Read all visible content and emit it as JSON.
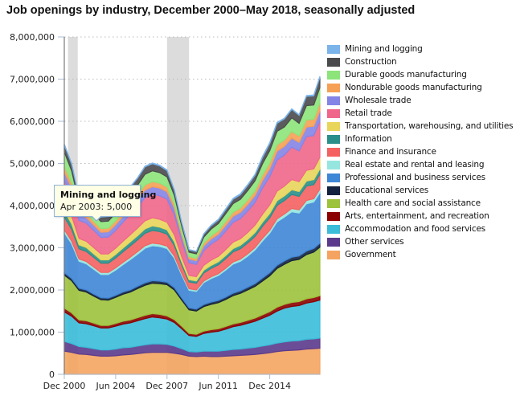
{
  "chart_data": {
    "type": "area",
    "stacked": true,
    "title": "Job openings by industry, December 2000–May 2018, seasonally adjusted",
    "xlabel": "",
    "ylabel": "",
    "ylim": [
      0,
      8000000
    ],
    "yticks": [
      0,
      1000000,
      2000000,
      3000000,
      4000000,
      5000000,
      6000000,
      7000000,
      8000000
    ],
    "ytick_labels": [
      "0",
      "1,000,000",
      "2,000,000",
      "3,000,000",
      "4,000,000",
      "5,000,000",
      "6,000,000",
      "7,000,000",
      "8,000,000"
    ],
    "xlim_months_since_dec2000": [
      0,
      209
    ],
    "xticks_months_since_dec2000": [
      0,
      42,
      84,
      126,
      168
    ],
    "xtick_labels": [
      "Dec 2000",
      "Jun 2004",
      "Dec 2007",
      "Jun 2011",
      "Dec 2014"
    ],
    "grid": "horizontal-dotted",
    "legend_position": "right",
    "recession_bands_months_since_dec2000": [
      [
        3,
        11
      ],
      [
        84,
        102
      ]
    ],
    "x": [
      "Dec 2000",
      "Jun 2001",
      "Dec 2001",
      "Jun 2002",
      "Dec 2002",
      "Jun 2003",
      "Dec 2003",
      "Jun 2004",
      "Dec 2004",
      "Jun 2005",
      "Dec 2005",
      "Jun 2006",
      "Dec 2006",
      "Jun 2007",
      "Dec 2007",
      "Jun 2008",
      "Dec 2008",
      "Jun 2009",
      "Dec 2009",
      "Jun 2010",
      "Dec 2010",
      "Jun 2011",
      "Dec 2011",
      "Jun 2012",
      "Dec 2012",
      "Jun 2013",
      "Dec 2013",
      "Jun 2014",
      "Dec 2014",
      "Jun 2015",
      "Dec 2015",
      "Jun 2016",
      "Dec 2016",
      "Jun 2017",
      "Dec 2017",
      "May 2018"
    ],
    "x_months_since_dec2000": [
      0,
      6,
      12,
      18,
      24,
      30,
      36,
      42,
      48,
      54,
      60,
      66,
      72,
      78,
      84,
      90,
      96,
      102,
      108,
      114,
      120,
      126,
      132,
      138,
      144,
      150,
      156,
      162,
      168,
      174,
      180,
      186,
      192,
      198,
      204,
      209
    ],
    "series": [
      {
        "name": "Government",
        "color": "#f4a460",
        "values": [
          550000,
          520000,
          480000,
          470000,
          450000,
          430000,
          430000,
          440000,
          460000,
          470000,
          490000,
          510000,
          520000,
          520000,
          520000,
          500000,
          470000,
          430000,
          420000,
          430000,
          420000,
          420000,
          430000,
          440000,
          450000,
          460000,
          470000,
          490000,
          510000,
          540000,
          560000,
          570000,
          580000,
          600000,
          610000,
          620000
        ]
      },
      {
        "name": "Other services",
        "color": "#5b3a8c",
        "values": [
          230000,
          210000,
          180000,
          170000,
          160000,
          150000,
          150000,
          160000,
          170000,
          170000,
          180000,
          190000,
          200000,
          200000,
          190000,
          170000,
          140000,
          110000,
          110000,
          120000,
          130000,
          130000,
          140000,
          150000,
          150000,
          160000,
          170000,
          180000,
          190000,
          200000,
          210000,
          220000,
          220000,
          230000,
          230000,
          240000
        ]
      },
      {
        "name": "Accommodation and food services",
        "color": "#3bbcd9",
        "values": [
          700000,
          650000,
          560000,
          560000,
          540000,
          520000,
          520000,
          540000,
          560000,
          580000,
          600000,
          620000,
          640000,
          620000,
          600000,
          560000,
          470000,
          380000,
          370000,
          420000,
          450000,
          470000,
          500000,
          540000,
          560000,
          590000,
          620000,
          660000,
          700000,
          760000,
          800000,
          820000,
          830000,
          860000,
          880000,
          900000
        ]
      },
      {
        "name": "Arts, entertainment, and recreation",
        "color": "#8b0000",
        "values": [
          90000,
          80000,
          70000,
          70000,
          65000,
          60000,
          60000,
          65000,
          70000,
          70000,
          75000,
          80000,
          80000,
          80000,
          75000,
          70000,
          60000,
          50000,
          50000,
          55000,
          60000,
          60000,
          65000,
          65000,
          70000,
          70000,
          75000,
          80000,
          85000,
          90000,
          90000,
          95000,
          95000,
          100000,
          100000,
          105000
        ]
      },
      {
        "name": "Health care and social assistance",
        "color": "#9dc23b",
        "values": [
          780000,
          760000,
          700000,
          680000,
          640000,
          610000,
          600000,
          620000,
          640000,
          660000,
          690000,
          710000,
          720000,
          730000,
          740000,
          700000,
          620000,
          560000,
          550000,
          580000,
          600000,
          620000,
          640000,
          670000,
          690000,
          720000,
          750000,
          800000,
          850000,
          920000,
          950000,
          990000,
          1000000,
          1050000,
          1080000,
          1150000
        ]
      },
      {
        "name": "Educational services",
        "color": "#13223e",
        "values": [
          60000,
          55000,
          50000,
          50000,
          48000,
          45000,
          45000,
          48000,
          50000,
          52000,
          55000,
          58000,
          60000,
          60000,
          58000,
          55000,
          50000,
          45000,
          45000,
          48000,
          50000,
          52000,
          55000,
          58000,
          60000,
          62000,
          65000,
          70000,
          72000,
          75000,
          78000,
          80000,
          80000,
          82000,
          85000,
          90000
        ]
      },
      {
        "name": "Professional and business services",
        "color": "#3e86d6",
        "values": [
          950000,
          820000,
          640000,
          620000,
          590000,
          550000,
          560000,
          600000,
          650000,
          720000,
          760000,
          820000,
          830000,
          820000,
          800000,
          700000,
          540000,
          420000,
          420000,
          520000,
          560000,
          590000,
          640000,
          690000,
          700000,
          740000,
          800000,
          880000,
          940000,
          1030000,
          1040000,
          1080000,
          1020000,
          1120000,
          1100000,
          1200000
        ]
      },
      {
        "name": "Real estate and rental and leasing",
        "color": "#96e6e0",
        "values": [
          70000,
          65000,
          55000,
          55000,
          52000,
          50000,
          50000,
          52000,
          55000,
          58000,
          60000,
          62000,
          62000,
          60000,
          58000,
          52000,
          42000,
          35000,
          35000,
          40000,
          42000,
          44000,
          46000,
          50000,
          52000,
          55000,
          58000,
          62000,
          66000,
          72000,
          74000,
          78000,
          76000,
          80000,
          80000,
          85000
        ]
      },
      {
        "name": "Finance and insurance",
        "color": "#f46160",
        "values": [
          300000,
          280000,
          240000,
          240000,
          230000,
          220000,
          220000,
          235000,
          250000,
          265000,
          280000,
          295000,
          300000,
          295000,
          285000,
          250000,
          200000,
          160000,
          160000,
          190000,
          200000,
          210000,
          225000,
          240000,
          245000,
          255000,
          265000,
          285000,
          300000,
          320000,
          320000,
          330000,
          320000,
          340000,
          335000,
          355000
        ]
      },
      {
        "name": "Information",
        "color": "#2a8f8a",
        "values": [
          150000,
          130000,
          95000,
          90000,
          85000,
          80000,
          80000,
          85000,
          90000,
          95000,
          100000,
          105000,
          108000,
          105000,
          100000,
          90000,
          70000,
          55000,
          55000,
          65000,
          70000,
          72000,
          76000,
          80000,
          82000,
          86000,
          90000,
          96000,
          100000,
          110000,
          110000,
          115000,
          112000,
          120000,
          118000,
          125000
        ]
      },
      {
        "name": "Transportation, warehousing, and utilities",
        "color": "#e8d55a",
        "values": [
          200000,
          185000,
          150000,
          150000,
          145000,
          140000,
          140000,
          148000,
          160000,
          170000,
          180000,
          190000,
          190000,
          185000,
          180000,
          160000,
          125000,
          100000,
          100000,
          115000,
          125000,
          130000,
          140000,
          150000,
          155000,
          165000,
          175000,
          190000,
          205000,
          225000,
          230000,
          240000,
          235000,
          255000,
          255000,
          275000
        ]
      },
      {
        "name": "Retail trade",
        "color": "#f0668a",
        "values": [
          520000,
          490000,
          430000,
          430000,
          410000,
          390000,
          400000,
          420000,
          450000,
          490000,
          510000,
          550000,
          560000,
          560000,
          550000,
          480000,
          380000,
          300000,
          290000,
          350000,
          380000,
          400000,
          440000,
          470000,
          480000,
          510000,
          540000,
          620000,
          670000,
          740000,
          740000,
          770000,
          730000,
          800000,
          790000,
          860000
        ]
      },
      {
        "name": "Wholesale trade",
        "color": "#8484e6",
        "values": [
          200000,
          180000,
          140000,
          135000,
          130000,
          125000,
          125000,
          135000,
          145000,
          155000,
          165000,
          180000,
          180000,
          180000,
          175000,
          155000,
          120000,
          90000,
          90000,
          110000,
          120000,
          125000,
          135000,
          145000,
          148000,
          155000,
          165000,
          180000,
          190000,
          210000,
          205000,
          215000,
          205000,
          225000,
          220000,
          240000
        ]
      },
      {
        "name": "Nondurable goods manufacturing",
        "color": "#f6a055",
        "values": [
          140000,
          120000,
          95000,
          95000,
          90000,
          85000,
          85000,
          92000,
          100000,
          108000,
          112000,
          120000,
          120000,
          118000,
          112000,
          98000,
          75000,
          55000,
          55000,
          68000,
          75000,
          80000,
          88000,
          95000,
          98000,
          105000,
          110000,
          125000,
          135000,
          150000,
          150000,
          158000,
          150000,
          170000,
          168000,
          185000
        ]
      },
      {
        "name": "Durable goods manufacturing",
        "color": "#8ce47a",
        "values": [
          330000,
          280000,
          190000,
          185000,
          175000,
          165000,
          168000,
          185000,
          205000,
          225000,
          235000,
          255000,
          255000,
          250000,
          238000,
          205000,
          150000,
          105000,
          105000,
          140000,
          160000,
          172000,
          190000,
          205000,
          210000,
          225000,
          240000,
          270000,
          290000,
          320000,
          310000,
          320000,
          300000,
          340000,
          335000,
          370000
        ]
      },
      {
        "name": "Construction",
        "color": "#4a4a4c",
        "values": [
          170000,
          160000,
          120000,
          115000,
          110000,
          105000,
          110000,
          120000,
          135000,
          150000,
          160000,
          175000,
          170000,
          160000,
          150000,
          120000,
          80000,
          55000,
          55000,
          70000,
          80000,
          85000,
          95000,
          105000,
          110000,
          120000,
          130000,
          150000,
          165000,
          190000,
          190000,
          200000,
          190000,
          220000,
          215000,
          240000
        ]
      },
      {
        "name": "Mining and logging",
        "color": "#7ab4ea",
        "values": [
          20000,
          18000,
          12000,
          10000,
          8000,
          5000,
          6000,
          8000,
          10000,
          12000,
          14000,
          16000,
          16000,
          16000,
          17000,
          16000,
          12000,
          8000,
          8000,
          12000,
          14000,
          16000,
          18000,
          20000,
          20000,
          22000,
          22000,
          26000,
          28000,
          22000,
          18000,
          15000,
          16000,
          20000,
          24000,
          26000
        ]
      }
    ]
  },
  "legend": {
    "items": [
      {
        "label": "Mining and logging",
        "color": "#7ab4ea"
      },
      {
        "label": "Construction",
        "color": "#4a4a4c"
      },
      {
        "label": "Durable goods manufacturing",
        "color": "#8ce47a"
      },
      {
        "label": "Nondurable goods manufacturing",
        "color": "#f6a055"
      },
      {
        "label": "Wholesale trade",
        "color": "#8484e6"
      },
      {
        "label": "Retail trade",
        "color": "#f0668a"
      },
      {
        "label": "Transportation, warehousing, and utilities",
        "color": "#e8d55a"
      },
      {
        "label": "Information",
        "color": "#2a8f8a"
      },
      {
        "label": "Finance and insurance",
        "color": "#f46160"
      },
      {
        "label": "Real estate and rental and leasing",
        "color": "#96e6e0"
      },
      {
        "label": "Professional and business services",
        "color": "#3e86d6"
      },
      {
        "label": "Educational services",
        "color": "#13223e"
      },
      {
        "label": "Health care and social assistance",
        "color": "#9dc23b"
      },
      {
        "label": "Arts, entertainment, and recreation",
        "color": "#8b0000"
      },
      {
        "label": "Accommodation and food services",
        "color": "#3bbcd9"
      },
      {
        "label": "Other services",
        "color": "#5b3a8c"
      },
      {
        "label": "Government",
        "color": "#f4a460"
      }
    ]
  },
  "tooltip": {
    "title": "Mining and logging",
    "value": "Apr 2003: 5,000"
  }
}
